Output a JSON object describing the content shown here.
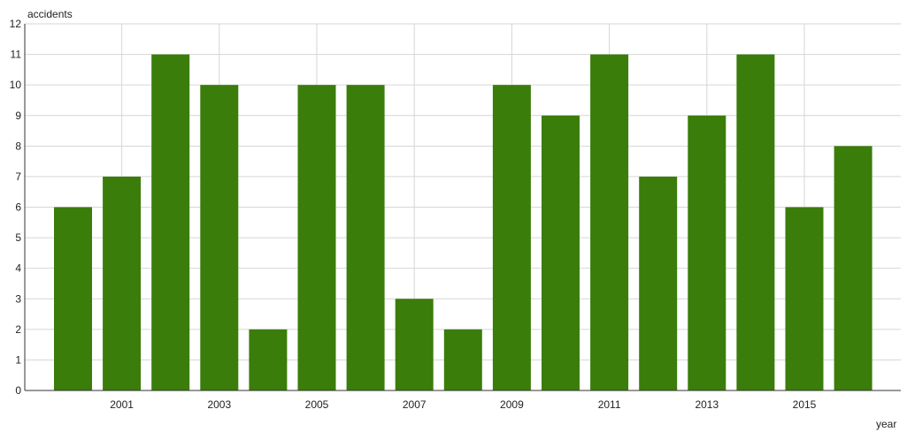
{
  "chart_data": {
    "type": "bar",
    "categories": [
      "2000",
      "2001",
      "2002",
      "2003",
      "2004",
      "2005",
      "2006",
      "2007",
      "2008",
      "2009",
      "2010",
      "2011",
      "2012",
      "2013",
      "2014",
      "2015",
      "2016"
    ],
    "values": [
      6,
      7,
      11,
      10,
      2,
      10,
      10,
      3,
      2,
      10,
      9,
      11,
      7,
      9,
      11,
      6,
      8
    ],
    "x_tick_labels": [
      "2001",
      "2003",
      "2005",
      "2007",
      "2009",
      "2011",
      "2013",
      "2015"
    ],
    "y_ticks": [
      0,
      1,
      2,
      3,
      4,
      5,
      6,
      7,
      8,
      9,
      10,
      11,
      12
    ],
    "ylim": [
      0,
      12
    ],
    "xlabel": "year",
    "ylabel": "accidents",
    "title": "",
    "grid": true,
    "bar_color": "#3a7d0a",
    "grid_color": "#d6d6d6",
    "axis_color": "#333333"
  }
}
